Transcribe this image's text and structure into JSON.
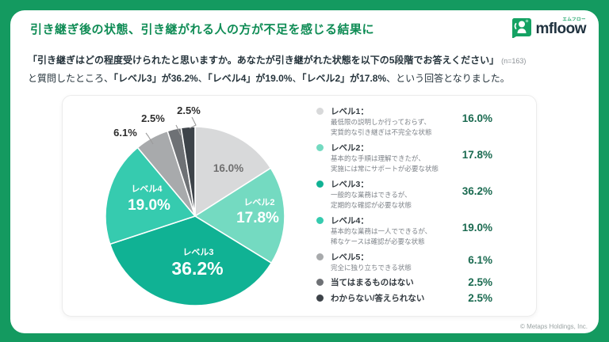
{
  "header": {
    "title": "引き継ぎ後の状態、引き継がれる人の方が不足を感じる結果に",
    "logo": {
      "text": "mfloow",
      "furigana": "エムフロー"
    }
  },
  "intro": {
    "line1": "「引き継ぎはどの程度受けられたと思いますか。あなたが引き継がれた状態を以下の5段階でお答えください」",
    "n_note": "(n=163)",
    "line2_segments": [
      {
        "text": "と質問したところ、",
        "bold": false
      },
      {
        "text": "「レベル3」が36.2%",
        "bold": true
      },
      {
        "text": "、",
        "bold": false
      },
      {
        "text": "「レベル4」が19.0%",
        "bold": true
      },
      {
        "text": "、",
        "bold": false
      },
      {
        "text": "「レベル2」が17.8%",
        "bold": true
      },
      {
        "text": "、という回答となりました。",
        "bold": false
      }
    ]
  },
  "chart_data": {
    "type": "pie",
    "start_angle": "top",
    "direction": "clockwise",
    "legend_position": "right",
    "slices": [
      {
        "label": "レベル1",
        "value": 16.0,
        "color": "#d8d9da"
      },
      {
        "label": "レベル2",
        "value": 17.8,
        "color": "#74dac1"
      },
      {
        "label": "レベル3",
        "value": 36.2,
        "color": "#10b294"
      },
      {
        "label": "レベル4",
        "value": 19.0,
        "color": "#36cbaf"
      },
      {
        "label": "レベル5",
        "value": 6.1,
        "color": "#a8aaac"
      },
      {
        "label": "当てはまるものはない",
        "value": 2.5,
        "color": "#6e7175"
      },
      {
        "label": "わからない/答えられない",
        "value": 2.5,
        "color": "#3d4349"
      }
    ]
  },
  "legend": {
    "items": [
      {
        "slice": 0,
        "label": "レベル1：",
        "desc": [
          "最低限の説明しか行っておらず、",
          "実質的な引き継ぎは不完全な状態"
        ],
        "value": "16.0%"
      },
      {
        "slice": 1,
        "label": "レベル2：",
        "desc": [
          "基本的な手順は理解できたが、",
          "実施には常にサポートが必要な状態"
        ],
        "value": "17.8%"
      },
      {
        "slice": 2,
        "label": "レベル3：",
        "desc": [
          "一般的な業務はできるが、",
          "定期的な確認が必要な状態"
        ],
        "value": "36.2%"
      },
      {
        "slice": 3,
        "label": "レベル4：",
        "desc": [
          "基本的な業務は一人でできるが、",
          "稀なケースは確認が必要な状態"
        ],
        "value": "19.0%"
      },
      {
        "slice": 4,
        "label": "レベル5：",
        "desc": [
          "完全に独り立ちできる状態"
        ],
        "value": "6.1%"
      },
      {
        "slice": 5,
        "label": "当てはまるものはない",
        "desc": [],
        "value": "2.5%"
      },
      {
        "slice": 6,
        "label": "わからない/答えられない",
        "desc": [],
        "value": "2.5%"
      }
    ]
  },
  "colors": {
    "frame_green": "#149a60",
    "title_green": "#0f8c55",
    "legend_value_green": "#1a6a50",
    "inside_label_white": "#ffffff",
    "level1_label_gray": "#6f6f6f",
    "outside_label_dark": "#2e2e2e",
    "leader_line_gray": "#9b9b9b"
  },
  "footer": {
    "copyright": "© Metaps Holdings, Inc."
  }
}
